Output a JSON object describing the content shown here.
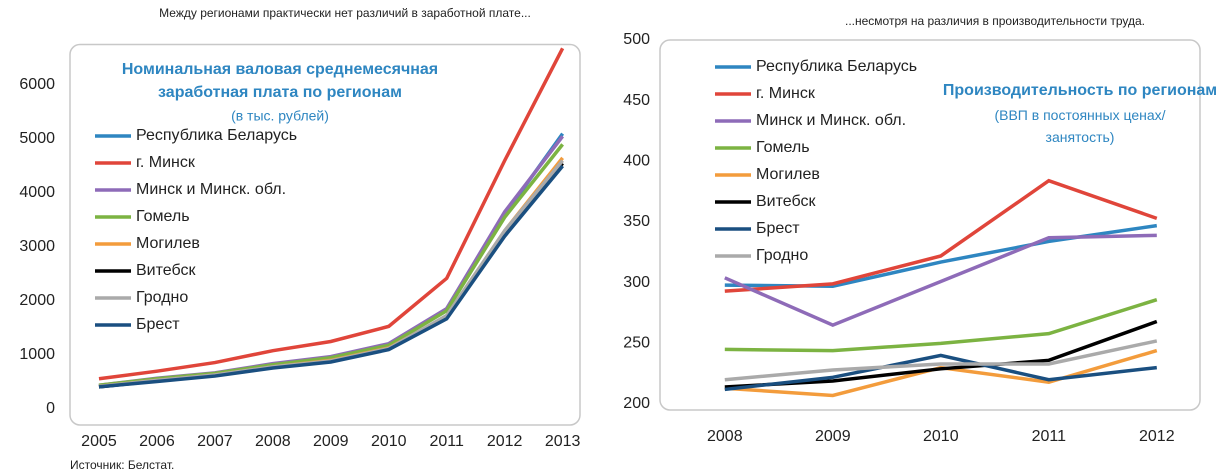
{
  "chart_data": [
    {
      "type": "line",
      "caption": "Между регионами практически нет различий в заработной плате...",
      "title": "Номинальная валовая среднемесячная заработная плата по регионам",
      "subtitle": "(в тыс. рублей)",
      "x": [
        2005,
        2006,
        2007,
        2008,
        2009,
        2010,
        2011,
        2012,
        2013
      ],
      "xlim": [
        2004.5,
        2013.3
      ],
      "xticks": [
        2005,
        2006,
        2007,
        2008,
        2009,
        2010,
        2011,
        2012,
        2013
      ],
      "ylim": [
        0,
        6750
      ],
      "yticks": [
        0,
        1000,
        2000,
        3000,
        4000,
        5000,
        6000
      ],
      "series": [
        {
          "name": "Республика Беларусь",
          "color": "#2e86c1",
          "values": [
            430,
            560,
            660,
            830,
            960,
            1200,
            1850,
            3600,
            5100
          ]
        },
        {
          "name": "г. Минск",
          "color": "#e0453a",
          "values": [
            560,
            700,
            860,
            1080,
            1250,
            1530,
            2420,
            4600,
            6680
          ]
        },
        {
          "name": "Минск и Минск. обл.",
          "color": "#8e6bb8",
          "values": [
            440,
            570,
            670,
            840,
            970,
            1210,
            1860,
            3650,
            5050
          ]
        },
        {
          "name": "Гомель",
          "color": "#7cb342",
          "values": [
            440,
            560,
            660,
            820,
            950,
            1180,
            1820,
            3550,
            4900
          ]
        },
        {
          "name": "Могилев",
          "color": "#f39c3c",
          "values": [
            420,
            530,
            630,
            780,
            900,
            1130,
            1720,
            3300,
            4650
          ]
        },
        {
          "name": "Витебск",
          "color": "#000000",
          "values": [
            410,
            520,
            620,
            770,
            880,
            1110,
            1700,
            3250,
            4550
          ]
        },
        {
          "name": "Гродно",
          "color": "#aaaaaa",
          "values": [
            420,
            530,
            630,
            780,
            890,
            1120,
            1730,
            3300,
            4600
          ]
        },
        {
          "name": "Брест",
          "color": "#1a4f80",
          "values": [
            410,
            510,
            610,
            760,
            870,
            1100,
            1670,
            3200,
            4500
          ]
        }
      ]
    },
    {
      "type": "line",
      "caption": "...несмотря на различия в производительности труда.",
      "title": "Производительность по регионам",
      "subtitle": "(ВВП в постоянных ценах/ занятость)",
      "x": [
        2008,
        2009,
        2010,
        2011,
        2012
      ],
      "xlim": [
        2007.4,
        2012.4
      ],
      "xticks": [
        2008,
        2009,
        2010,
        2011,
        2012
      ],
      "ylim": [
        200,
        500
      ],
      "yticks": [
        200,
        250,
        300,
        350,
        400,
        450,
        500
      ],
      "series": [
        {
          "name": "Республика Беларусь",
          "color": "#2e86c1",
          "values": [
            298,
            297,
            317,
            334,
            347
          ]
        },
        {
          "name": "г. Минск",
          "color": "#e0453a",
          "values": [
            293,
            299,
            322,
            384,
            353
          ]
        },
        {
          "name": "Минск и Минск. обл.",
          "color": "#8e6bb8",
          "values": [
            304,
            265,
            301,
            337,
            339
          ]
        },
        {
          "name": "Гомель",
          "color": "#7cb342",
          "values": [
            245,
            244,
            250,
            258,
            286
          ]
        },
        {
          "name": "Могилев",
          "color": "#f39c3c",
          "values": [
            213,
            207,
            230,
            218,
            244
          ]
        },
        {
          "name": "Витебск",
          "color": "#000000",
          "values": [
            214,
            219,
            229,
            236,
            268
          ]
        },
        {
          "name": "Брест",
          "color": "#1a4f80",
          "values": [
            212,
            222,
            240,
            220,
            230
          ]
        },
        {
          "name": "Гродно",
          "color": "#aaaaaa",
          "values": [
            220,
            228,
            233,
            233,
            252
          ]
        }
      ]
    }
  ],
  "source": "Источник: Белстат."
}
